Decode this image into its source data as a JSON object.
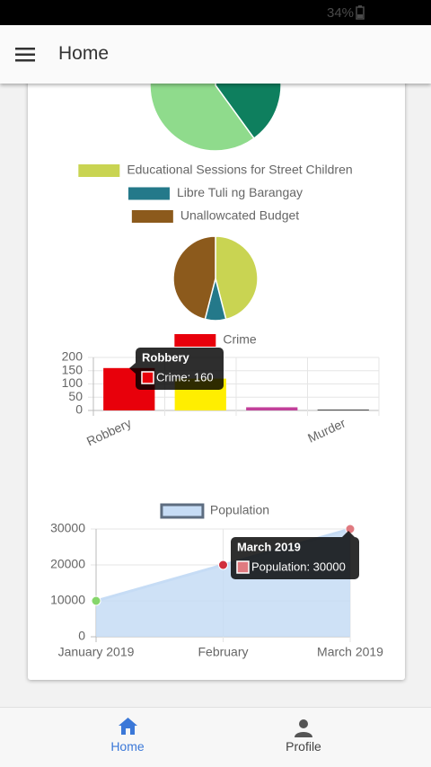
{
  "status_bar": {
    "battery": "34%"
  },
  "app_bar": {
    "title": "Home"
  },
  "chart_data": [
    {
      "type": "pie",
      "values": [
        40,
        60
      ],
      "colors": [
        "#0e7f5e",
        "#8fdb8c"
      ]
    },
    {
      "type": "pie",
      "categories": [
        "Educational Sessions for Street Children",
        "Libre Tuli ng Barangay",
        "Unallowcated Budget"
      ],
      "values": [
        46,
        8,
        46
      ],
      "colors": [
        "#c9d452",
        "#24798a",
        "#8c5a1c"
      ],
      "legend": "top"
    },
    {
      "type": "bar",
      "categories": [
        "Robbery",
        null,
        null,
        "Murder"
      ],
      "series": [
        {
          "name": "Crime",
          "color": "#e8000b",
          "values": [
            160,
            120,
            12,
            3
          ],
          "colors": [
            "#e8000b",
            "#ffee00",
            "#c2409a",
            "#333333"
          ]
        }
      ],
      "ylim": [
        0,
        200
      ],
      "yticks": [
        0,
        50,
        100,
        150,
        200
      ],
      "grid": true,
      "legend": "top",
      "tooltip": {
        "title": "Robbery",
        "body": "Crime: 160"
      }
    },
    {
      "type": "line",
      "categories": [
        "January 2019",
        "February",
        "March 2019"
      ],
      "series": [
        {
          "name": "Population",
          "color": "#5d6d80",
          "fill": "#c6dcf5",
          "values": [
            10000,
            20000,
            30000
          ],
          "point_colors": [
            "#86d66b",
            "#d12f3d",
            "#e07a80"
          ]
        }
      ],
      "ylim": [
        0,
        30000
      ],
      "yticks": [
        0,
        10000,
        20000,
        30000
      ],
      "grid": true,
      "legend": "top",
      "tooltip": {
        "title": "March 2019",
        "body": "Population: 30000"
      }
    }
  ],
  "bottom_nav": {
    "items": [
      "Home",
      "Profile"
    ]
  }
}
